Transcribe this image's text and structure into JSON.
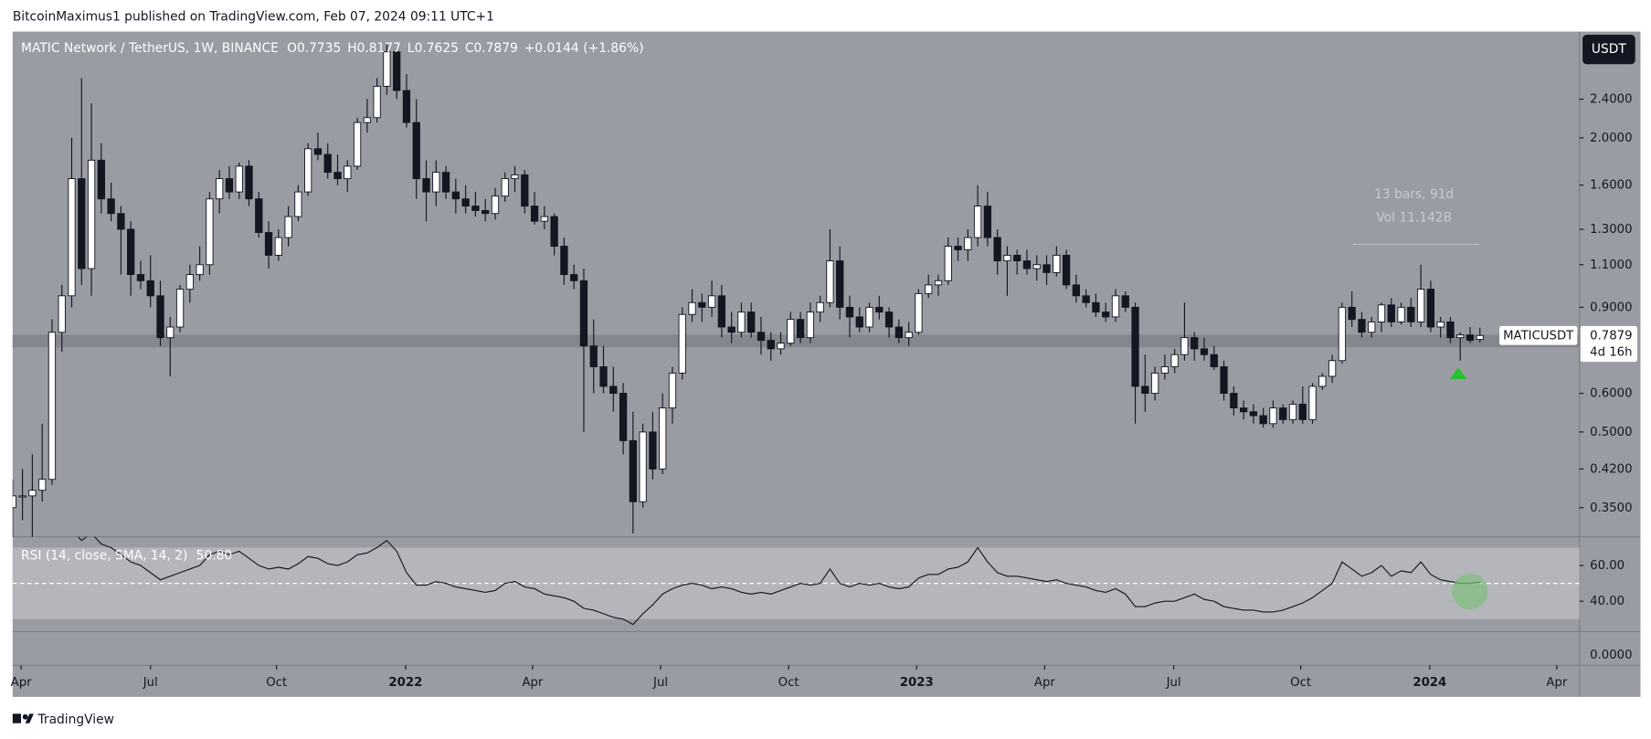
{
  "header": {
    "publisher": "BitcoinMaximus1 published on TradingView.com, Feb 07, 2024 09:11 UTC+1",
    "footer": "TradingView"
  },
  "chart_data": {
    "type": "candlestick",
    "symbol": "MATIC Network / TetherUS, 1W, BINANCE",
    "ohlc_labels": [
      "O",
      "H",
      "L",
      "C"
    ],
    "change": "+0.0144",
    "change_pct": "(+1.86%)",
    "currency": "USDT",
    "ticker": "MATICUSDT",
    "countdown": "4d 16h",
    "measure": {
      "bars": "13 bars, 91d",
      "volume": "Vol 11.142B"
    },
    "log_scale": true,
    "ylim": [
      0.305,
      3.3
    ],
    "yticks": [
      {
        "value": 2.4,
        "label": "2.4000"
      },
      {
        "value": 2.0,
        "label": "2.0000"
      },
      {
        "value": 1.6,
        "label": "1.6000"
      },
      {
        "value": 1.3,
        "label": "1.3000"
      },
      {
        "value": 1.1,
        "label": "1.1000"
      },
      {
        "value": 0.9,
        "label": "0.9000"
      },
      {
        "value": 0.6,
        "label": "0.6000"
      },
      {
        "value": 0.5,
        "label": "0.5000"
      },
      {
        "value": 0.42,
        "label": "0.4200"
      },
      {
        "value": 0.35,
        "label": "0.3500"
      }
    ],
    "xlim": [
      0,
      159.1
    ],
    "xticks": [
      {
        "value": 0.86,
        "label": "Apr"
      },
      {
        "value": 14.0,
        "label": "Jul"
      },
      {
        "value": 26.8,
        "label": "Oct"
      },
      {
        "value": 39.9,
        "label": "2022"
      },
      {
        "value": 52.8,
        "label": "Apr"
      },
      {
        "value": 65.8,
        "label": "Jul"
      },
      {
        "value": 78.8,
        "label": "Oct"
      },
      {
        "value": 91.8,
        "label": "2023"
      },
      {
        "value": 104.8,
        "label": "Apr"
      },
      {
        "value": 117.9,
        "label": "Jul"
      },
      {
        "value": 130.8,
        "label": "Oct"
      },
      {
        "value": 143.9,
        "label": "2024"
      },
      {
        "value": 156.8,
        "label": "Apr"
      }
    ],
    "candles": [
      [
        0.35,
        0.4,
        0.3,
        0.37
      ],
      [
        0.37,
        0.42,
        0.33,
        0.37
      ],
      [
        0.37,
        0.45,
        0.3,
        0.38
      ],
      [
        0.38,
        0.52,
        0.36,
        0.4
      ],
      [
        0.4,
        0.85,
        0.39,
        0.8
      ],
      [
        0.8,
        1.0,
        0.73,
        0.95
      ],
      [
        0.95,
        2.0,
        0.9,
        1.65
      ],
      [
        1.65,
        2.65,
        1.0,
        1.08
      ],
      [
        1.08,
        2.35,
        0.95,
        1.8
      ],
      [
        1.8,
        1.95,
        1.4,
        1.5
      ],
      [
        1.5,
        1.62,
        1.35,
        1.4
      ],
      [
        1.4,
        1.45,
        1.05,
        1.3
      ],
      [
        1.3,
        1.35,
        0.95,
        1.05
      ],
      [
        1.05,
        1.12,
        0.98,
        1.02
      ],
      [
        1.02,
        1.15,
        0.9,
        0.95
      ],
      [
        0.95,
        1.02,
        0.75,
        0.78
      ],
      [
        0.78,
        0.86,
        0.65,
        0.82
      ],
      [
        0.82,
        1.0,
        0.8,
        0.98
      ],
      [
        0.98,
        1.1,
        0.92,
        1.05
      ],
      [
        1.05,
        1.2,
        1.02,
        1.1
      ],
      [
        1.1,
        1.55,
        1.05,
        1.5
      ],
      [
        1.5,
        1.72,
        1.4,
        1.65
      ],
      [
        1.65,
        1.75,
        1.5,
        1.55
      ],
      [
        1.55,
        1.78,
        1.5,
        1.75
      ],
      [
        1.75,
        1.8,
        1.45,
        1.5
      ],
      [
        1.5,
        1.55,
        1.25,
        1.28
      ],
      [
        1.28,
        1.35,
        1.08,
        1.15
      ],
      [
        1.15,
        1.3,
        1.12,
        1.25
      ],
      [
        1.25,
        1.45,
        1.2,
        1.38
      ],
      [
        1.38,
        1.6,
        1.35,
        1.55
      ],
      [
        1.55,
        1.95,
        1.52,
        1.9
      ],
      [
        1.9,
        2.05,
        1.8,
        1.85
      ],
      [
        1.85,
        1.95,
        1.65,
        1.7
      ],
      [
        1.7,
        1.85,
        1.6,
        1.65
      ],
      [
        1.65,
        1.8,
        1.55,
        1.75
      ],
      [
        1.75,
        2.2,
        1.72,
        2.15
      ],
      [
        2.15,
        2.4,
        2.05,
        2.2
      ],
      [
        2.2,
        2.65,
        2.15,
        2.55
      ],
      [
        2.55,
        3.1,
        2.45,
        3.0
      ],
      [
        3.0,
        3.05,
        2.4,
        2.5
      ],
      [
        2.5,
        2.7,
        2.1,
        2.15
      ],
      [
        2.15,
        2.4,
        1.5,
        1.65
      ],
      [
        1.65,
        1.8,
        1.35,
        1.55
      ],
      [
        1.55,
        1.8,
        1.45,
        1.7
      ],
      [
        1.7,
        1.75,
        1.5,
        1.55
      ],
      [
        1.55,
        1.65,
        1.4,
        1.5
      ],
      [
        1.5,
        1.6,
        1.4,
        1.45
      ],
      [
        1.45,
        1.55,
        1.38,
        1.42
      ],
      [
        1.42,
        1.5,
        1.35,
        1.4
      ],
      [
        1.4,
        1.58,
        1.36,
        1.52
      ],
      [
        1.52,
        1.7,
        1.48,
        1.65
      ],
      [
        1.65,
        1.75,
        1.55,
        1.68
      ],
      [
        1.68,
        1.72,
        1.4,
        1.45
      ],
      [
        1.45,
        1.55,
        1.33,
        1.35
      ],
      [
        1.35,
        1.45,
        1.3,
        1.38
      ],
      [
        1.38,
        1.4,
        1.15,
        1.2
      ],
      [
        1.2,
        1.25,
        1.0,
        1.05
      ],
      [
        1.05,
        1.1,
        0.98,
        1.02
      ],
      [
        1.02,
        1.08,
        0.5,
        0.75
      ],
      [
        0.75,
        0.85,
        0.6,
        0.68
      ],
      [
        0.68,
        0.75,
        0.6,
        0.62
      ],
      [
        0.62,
        0.68,
        0.55,
        0.6
      ],
      [
        0.6,
        0.63,
        0.45,
        0.48
      ],
      [
        0.48,
        0.55,
        0.31,
        0.36
      ],
      [
        0.36,
        0.52,
        0.35,
        0.5
      ],
      [
        0.5,
        0.55,
        0.4,
        0.42
      ],
      [
        0.42,
        0.6,
        0.41,
        0.56
      ],
      [
        0.56,
        0.68,
        0.52,
        0.66
      ],
      [
        0.66,
        0.9,
        0.64,
        0.87
      ],
      [
        0.87,
        0.98,
        0.84,
        0.92
      ],
      [
        0.92,
        0.96,
        0.84,
        0.9
      ],
      [
        0.9,
        1.02,
        0.86,
        0.95
      ],
      [
        0.95,
        1.0,
        0.78,
        0.82
      ],
      [
        0.82,
        0.88,
        0.76,
        0.8
      ],
      [
        0.8,
        0.92,
        0.78,
        0.88
      ],
      [
        0.88,
        0.92,
        0.78,
        0.8
      ],
      [
        0.8,
        0.86,
        0.72,
        0.77
      ],
      [
        0.77,
        0.8,
        0.7,
        0.74
      ],
      [
        0.74,
        0.8,
        0.72,
        0.76
      ],
      [
        0.76,
        0.88,
        0.75,
        0.85
      ],
      [
        0.85,
        0.88,
        0.76,
        0.78
      ],
      [
        0.78,
        0.92,
        0.76,
        0.88
      ],
      [
        0.88,
        0.95,
        0.84,
        0.92
      ],
      [
        0.92,
        1.3,
        0.9,
        1.12
      ],
      [
        1.12,
        1.2,
        0.85,
        0.9
      ],
      [
        0.9,
        0.95,
        0.78,
        0.86
      ],
      [
        0.86,
        0.9,
        0.8,
        0.82
      ],
      [
        0.82,
        0.92,
        0.8,
        0.9
      ],
      [
        0.9,
        0.95,
        0.85,
        0.88
      ],
      [
        0.88,
        0.9,
        0.78,
        0.82
      ],
      [
        0.82,
        0.85,
        0.76,
        0.78
      ],
      [
        0.78,
        0.84,
        0.75,
        0.8
      ],
      [
        0.8,
        0.98,
        0.79,
        0.96
      ],
      [
        0.96,
        1.05,
        0.94,
        1.0
      ],
      [
        1.0,
        1.05,
        0.95,
        1.02
      ],
      [
        1.02,
        1.25,
        1.0,
        1.2
      ],
      [
        1.2,
        1.25,
        1.12,
        1.18
      ],
      [
        1.18,
        1.3,
        1.12,
        1.25
      ],
      [
        1.25,
        1.6,
        1.2,
        1.45
      ],
      [
        1.45,
        1.55,
        1.2,
        1.25
      ],
      [
        1.25,
        1.3,
        1.05,
        1.12
      ],
      [
        1.12,
        1.2,
        0.95,
        1.15
      ],
      [
        1.15,
        1.18,
        1.05,
        1.12
      ],
      [
        1.12,
        1.18,
        1.05,
        1.08
      ],
      [
        1.08,
        1.15,
        1.02,
        1.1
      ],
      [
        1.1,
        1.15,
        1.0,
        1.06
      ],
      [
        1.06,
        1.2,
        1.04,
        1.15
      ],
      [
        1.15,
        1.18,
        0.98,
        1.0
      ],
      [
        1.0,
        1.05,
        0.92,
        0.95
      ],
      [
        0.95,
        0.98,
        0.9,
        0.92
      ],
      [
        0.92,
        0.96,
        0.86,
        0.88
      ],
      [
        0.88,
        0.92,
        0.84,
        0.86
      ],
      [
        0.86,
        0.98,
        0.84,
        0.95
      ],
      [
        0.95,
        0.97,
        0.88,
        0.9
      ],
      [
        0.9,
        0.92,
        0.52,
        0.62
      ],
      [
        0.62,
        0.72,
        0.55,
        0.6
      ],
      [
        0.6,
        0.68,
        0.58,
        0.66
      ],
      [
        0.66,
        0.72,
        0.64,
        0.68
      ],
      [
        0.68,
        0.74,
        0.66,
        0.72
      ],
      [
        0.72,
        0.92,
        0.7,
        0.78
      ],
      [
        0.78,
        0.8,
        0.7,
        0.74
      ],
      [
        0.74,
        0.78,
        0.7,
        0.72
      ],
      [
        0.72,
        0.75,
        0.67,
        0.68
      ],
      [
        0.68,
        0.7,
        0.58,
        0.6
      ],
      [
        0.6,
        0.62,
        0.54,
        0.56
      ],
      [
        0.56,
        0.58,
        0.53,
        0.55
      ],
      [
        0.55,
        0.57,
        0.52,
        0.54
      ],
      [
        0.54,
        0.56,
        0.51,
        0.52
      ],
      [
        0.52,
        0.58,
        0.51,
        0.56
      ],
      [
        0.56,
        0.57,
        0.52,
        0.53
      ],
      [
        0.53,
        0.58,
        0.52,
        0.57
      ],
      [
        0.57,
        0.62,
        0.52,
        0.53
      ],
      [
        0.53,
        0.63,
        0.52,
        0.62
      ],
      [
        0.62,
        0.66,
        0.61,
        0.65
      ],
      [
        0.65,
        0.72,
        0.63,
        0.7
      ],
      [
        0.7,
        0.92,
        0.69,
        0.9
      ],
      [
        0.9,
        0.97,
        0.82,
        0.85
      ],
      [
        0.85,
        0.88,
        0.78,
        0.8
      ],
      [
        0.8,
        0.86,
        0.78,
        0.84
      ],
      [
        0.84,
        0.92,
        0.8,
        0.91
      ],
      [
        0.91,
        0.94,
        0.82,
        0.84
      ],
      [
        0.84,
        0.92,
        0.83,
        0.9
      ],
      [
        0.9,
        0.94,
        0.82,
        0.84
      ],
      [
        0.84,
        1.1,
        0.82,
        0.98
      ],
      [
        0.98,
        1.02,
        0.8,
        0.82
      ],
      [
        0.82,
        0.86,
        0.78,
        0.84
      ],
      [
        0.84,
        0.86,
        0.76,
        0.78
      ],
      [
        0.78,
        0.8,
        0.7,
        0.79
      ],
      [
        0.79,
        0.82,
        0.76,
        0.77
      ],
      [
        0.7735,
        0.8177,
        0.7625,
        0.7879
      ]
    ],
    "rsi": {
      "label": "RSI (14, close, SMA, 14, 2)",
      "value_label": "50.80",
      "ylim": [
        23,
        76
      ],
      "yticks": [
        {
          "value": 60,
          "label": "60.00"
        },
        {
          "value": 40,
          "label": "40.00"
        }
      ],
      "band": [
        30,
        70
      ],
      "midline": 50,
      "values": [
        null,
        null,
        null,
        null,
        null,
        null,
        80,
        74,
        78,
        72,
        70,
        66,
        62,
        60,
        56,
        52,
        54,
        56,
        58,
        60,
        66,
        68,
        66,
        68,
        64,
        60,
        58,
        59,
        58,
        61,
        65,
        64,
        61,
        60,
        62,
        66,
        67,
        70,
        74,
        68,
        56,
        49,
        49,
        51,
        50,
        48,
        47,
        46,
        45,
        46,
        50,
        51,
        48,
        47,
        44,
        43,
        42,
        40,
        36,
        35,
        33,
        31,
        30,
        27,
        33,
        38,
        44,
        47,
        49,
        50,
        49,
        47,
        48,
        47,
        45,
        44,
        45,
        44,
        46,
        48,
        50,
        49,
        50,
        58,
        50,
        48,
        50,
        49,
        50,
        48,
        47,
        48,
        53,
        55,
        55,
        58,
        59,
        62,
        70,
        62,
        56,
        54,
        54,
        53,
        52,
        51,
        52,
        50,
        49,
        48,
        46,
        45,
        47,
        44,
        37,
        37,
        39,
        40,
        40,
        42,
        44,
        41,
        40,
        37,
        36,
        35,
        35,
        34,
        34,
        35,
        37,
        39,
        42,
        46,
        50,
        62,
        58,
        54,
        56,
        60,
        54,
        57,
        56,
        62,
        55,
        52,
        51,
        50,
        50,
        50.8
      ]
    },
    "pane3": {
      "yticks": [
        {
          "value": 0,
          "label": "0.0000"
        }
      ]
    }
  }
}
